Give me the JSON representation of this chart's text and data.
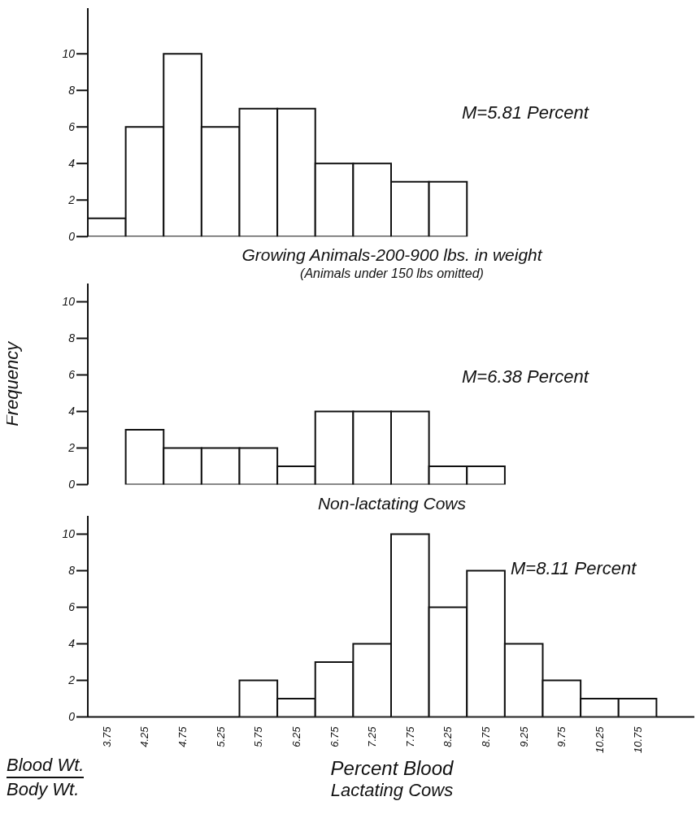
{
  "chart_data": [
    {
      "type": "histogram",
      "title": "Growing Animals-200-900 lbs. in weight",
      "subtitle": "(Animals under 150 lbs omitted)",
      "annotations": [
        "M=5.81 Percent"
      ],
      "bins": [
        3.5,
        4.0,
        4.5,
        5.0,
        5.5,
        6.0,
        6.5,
        7.0,
        7.5,
        8.0,
        8.5
      ],
      "values": [
        1,
        6,
        10,
        6,
        7,
        7,
        4,
        4,
        3,
        3
      ],
      "color": "#ffffff",
      "xlim": [
        3.5,
        11.5
      ],
      "ylim": [
        0,
        12.5
      ],
      "yticks": [
        0,
        2,
        4,
        6,
        8,
        10
      ],
      "tick_labels": "y"
    },
    {
      "type": "histogram",
      "title": "Non-lactating Cows",
      "ylabel": "Frequency",
      "annotations": [
        "M=6.38 Percent"
      ],
      "bins": [
        4.0,
        4.5,
        5.0,
        5.5,
        6.0,
        6.5,
        7.0,
        7.5,
        8.0,
        8.5,
        9.0
      ],
      "values": [
        3,
        2,
        2,
        2,
        1,
        4,
        4,
        4,
        1,
        1
      ],
      "color": "#ffffff",
      "xlim": [
        3.5,
        11.5
      ],
      "ylim": [
        0,
        11
      ],
      "yticks": [
        0,
        2,
        4,
        6,
        8,
        10
      ],
      "tick_labels": "y"
    },
    {
      "type": "histogram",
      "title": "Lactating Cows",
      "xlabel": "Percent Blood",
      "annotations": [
        "M=8.11 Percent",
        "Blood Wt.",
        "Body Wt."
      ],
      "bins": [
        5.5,
        6.0,
        6.5,
        7.0,
        7.5,
        8.0,
        8.5,
        9.0,
        9.5,
        10.0,
        10.5,
        11.0
      ],
      "values": [
        2,
        1,
        3,
        4,
        10,
        6,
        8,
        4,
        2,
        1,
        1
      ],
      "color": "#ffffff",
      "xlim": [
        3.5,
        11.5
      ],
      "ylim": [
        0,
        11
      ],
      "yticks": [
        0,
        2,
        4,
        6,
        8,
        10
      ],
      "xticks": [
        3.75,
        4.25,
        4.75,
        5.25,
        5.75,
        6.25,
        6.75,
        7.25,
        7.75,
        8.25,
        8.75,
        9.25,
        9.75,
        10.25,
        10.75
      ]
    }
  ]
}
